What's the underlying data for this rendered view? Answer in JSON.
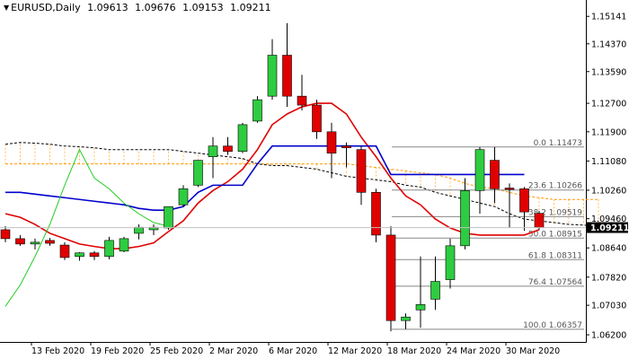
{
  "header": {
    "symbol": "EURUSD,Daily",
    "open": "1.09613",
    "high": "1.09676",
    "low": "1.09153",
    "close": "1.09211"
  },
  "price_axis": {
    "labels": [
      "1.15141",
      "1.14370",
      "1.13590",
      "1.12700",
      "1.11900",
      "1.11080",
      "1.10260",
      "1.09460",
      "1.08640",
      "1.07820",
      "1.07030",
      "1.06200"
    ],
    "current_price": "1.09211"
  },
  "time_axis": {
    "labels": [
      "13 Feb 2020",
      "19 Feb 2020",
      "25 Feb 2020",
      "2 Mar 2020",
      "6 Mar 2020",
      "12 Mar 2020",
      "18 Mar 2020",
      "24 Mar 2020",
      "30 Mar 2020"
    ]
  },
  "fibonacci": [
    {
      "label": "0.0 1.11473",
      "price": 1.11473
    },
    {
      "label": "23.6 1.10266",
      "price": 1.10266
    },
    {
      "label": "38.2 1.09519",
      "price": 1.09519
    },
    {
      "label": "50.0 1.08915",
      "price": 1.08915
    },
    {
      "label": "61.8 1.08311",
      "price": 1.08311
    },
    {
      "label": "76.4 1.07564",
      "price": 1.07564
    },
    {
      "label": "100.0 1.06357",
      "price": 1.06357
    }
  ],
  "colors": {
    "bull": "#2ecc40",
    "bear": "#e00000",
    "tenkan": "#e00000",
    "kijun": "#0000cc",
    "chikou": "#22cc22",
    "cloud": "#ff9900",
    "fib": "#888888",
    "span_b": "#000000"
  },
  "chart_data": {
    "type": "candlestick",
    "symbol": "EURUSD",
    "timeframe": "Daily",
    "ylim": [
      1.06,
      1.156
    ],
    "candles": [
      {
        "date": "11 Feb 2020",
        "o": 1.0915,
        "h": 1.0925,
        "l": 1.088,
        "c": 1.089
      },
      {
        "date": "12 Feb 2020",
        "o": 1.089,
        "h": 1.09,
        "l": 1.087,
        "c": 1.0875
      },
      {
        "date": "13 Feb 2020",
        "o": 1.0875,
        "h": 1.089,
        "l": 1.086,
        "c": 1.088
      },
      {
        "date": "14 Feb 2020",
        "o": 1.0885,
        "h": 1.0892,
        "l": 1.087,
        "c": 1.0877
      },
      {
        "date": "17 Feb 2020",
        "o": 1.0872,
        "h": 1.088,
        "l": 1.083,
        "c": 1.0837
      },
      {
        "date": "18 Feb 2020",
        "o": 1.084,
        "h": 1.0852,
        "l": 1.0828,
        "c": 1.085
      },
      {
        "date": "19 Feb 2020",
        "o": 1.085,
        "h": 1.0855,
        "l": 1.083,
        "c": 1.084
      },
      {
        "date": "20 Feb 2020",
        "o": 1.084,
        "h": 1.0895,
        "l": 1.0832,
        "c": 1.0885
      },
      {
        "date": "21 Feb 2020",
        "o": 1.0855,
        "h": 1.0895,
        "l": 1.0852,
        "c": 1.089
      },
      {
        "date": "24 Feb 2020",
        "o": 1.0905,
        "h": 1.093,
        "l": 1.0888,
        "c": 1.0922
      },
      {
        "date": "25 Feb 2020",
        "o": 1.0915,
        "h": 1.093,
        "l": 1.09,
        "c": 1.0922
      },
      {
        "date": "26 Feb 2020",
        "o": 1.092,
        "h": 1.098,
        "l": 1.0915,
        "c": 1.098
      },
      {
        "date": "27 Feb 2020",
        "o": 1.0985,
        "h": 1.104,
        "l": 1.098,
        "c": 1.103
      },
      {
        "date": "28 Feb 2020",
        "o": 1.104,
        "h": 1.111,
        "l": 1.1035,
        "c": 1.111
      },
      {
        "date": "2 Mar 2020",
        "o": 1.112,
        "h": 1.1175,
        "l": 1.106,
        "c": 1.115
      },
      {
        "date": "3 Mar 2020",
        "o": 1.115,
        "h": 1.1175,
        "l": 1.1125,
        "c": 1.1135
      },
      {
        "date": "4 Mar 2020",
        "o": 1.1135,
        "h": 1.1215,
        "l": 1.113,
        "c": 1.121
      },
      {
        "date": "5 Mar 2020",
        "o": 1.122,
        "h": 1.129,
        "l": 1.1215,
        "c": 1.128
      },
      {
        "date": "6 Mar 2020",
        "o": 1.129,
        "h": 1.145,
        "l": 1.128,
        "c": 1.1405
      },
      {
        "date": "9 Mar 2020",
        "o": 1.1405,
        "h": 1.1495,
        "l": 1.126,
        "c": 1.129
      },
      {
        "date": "10 Mar 2020",
        "o": 1.129,
        "h": 1.135,
        "l": 1.125,
        "c": 1.1265
      },
      {
        "date": "11 Mar 2020",
        "o": 1.1265,
        "h": 1.128,
        "l": 1.117,
        "c": 1.119
      },
      {
        "date": "12 Mar 2020",
        "o": 1.119,
        "h": 1.1215,
        "l": 1.106,
        "c": 1.113
      },
      {
        "date": "13 Mar 2020",
        "o": 1.115,
        "h": 1.116,
        "l": 1.109,
        "c": 1.1145
      },
      {
        "date": "16 Mar 2020",
        "o": 1.114,
        "h": 1.115,
        "l": 1.0985,
        "c": 1.102
      },
      {
        "date": "17 Mar 2020",
        "o": 1.102,
        "h": 1.103,
        "l": 1.088,
        "c": 1.09
      },
      {
        "date": "18 Mar 2020",
        "o": 1.09,
        "h": 1.0925,
        "l": 1.063,
        "c": 1.066
      },
      {
        "date": "19 Mar 2020",
        "o": 1.066,
        "h": 1.068,
        "l": 1.0636,
        "c": 1.067
      },
      {
        "date": "20 Mar 2020",
        "o": 1.069,
        "h": 1.084,
        "l": 1.064,
        "c": 1.0705
      },
      {
        "date": "23 Mar 2020",
        "o": 1.072,
        "h": 1.084,
        "l": 1.069,
        "c": 1.077
      },
      {
        "date": "24 Mar 2020",
        "o": 1.0775,
        "h": 1.089,
        "l": 1.075,
        "c": 1.087
      },
      {
        "date": "25 Mar 2020",
        "o": 1.087,
        "h": 1.106,
        "l": 1.086,
        "c": 1.1025
      },
      {
        "date": "26 Mar 2020",
        "o": 1.1025,
        "h": 1.1147,
        "l": 1.096,
        "c": 1.114
      },
      {
        "date": "27 Mar 2020",
        "o": 1.111,
        "h": 1.1147,
        "l": 1.099,
        "c": 1.103
      },
      {
        "date": "30 Mar 2020",
        "o": 1.1032,
        "h": 1.1045,
        "l": 1.092,
        "c": 1.103
      },
      {
        "date": "31 Mar 2020",
        "o": 1.103,
        "h": 1.1035,
        "l": 1.0912,
        "c": 1.0965
      },
      {
        "date": "1 Apr 2020",
        "o": 1.0961,
        "h": 1.0968,
        "l": 1.0915,
        "c": 1.0921
      }
    ],
    "tenkan": [
      1.096,
      1.095,
      1.093,
      1.0905,
      1.089,
      1.0875,
      1.0868,
      1.0862,
      1.0862,
      1.0868,
      1.0878,
      1.091,
      1.094,
      1.099,
      1.1025,
      1.105,
      1.1085,
      1.114,
      1.121,
      1.124,
      1.126,
      1.127,
      1.127,
      1.124,
      1.1175,
      1.112,
      1.106,
      1.101,
      1.0985,
      1.0945,
      1.092,
      1.0905,
      1.09,
      1.09,
      1.09,
      1.09,
      1.0915
    ],
    "kijun": [
      1.102,
      1.102,
      1.1015,
      1.101,
      1.1005,
      1.1,
      1.0995,
      1.099,
      1.0985,
      1.0975,
      1.097,
      1.097,
      1.098,
      1.102,
      1.104,
      1.104,
      1.104,
      1.11,
      1.115,
      1.115,
      1.115,
      1.115,
      1.115,
      1.115,
      1.115,
      1.115,
      1.107,
      1.107,
      1.107,
      1.107,
      1.107,
      1.107,
      1.107,
      1.107,
      1.107,
      1.107
    ],
    "span_b": [
      1.1155,
      1.116,
      1.1158,
      1.1155,
      1.115,
      1.1148,
      1.1145,
      1.114,
      1.114,
      1.114,
      1.114,
      1.114,
      1.1135,
      1.113,
      1.1125,
      1.112,
      1.1115,
      1.11,
      1.1095,
      1.1095,
      1.109,
      1.1085,
      1.1075,
      1.1065,
      1.106,
      1.1055,
      1.105,
      1.104,
      1.1035,
      1.102,
      1.101,
      1.1,
      1.099,
      1.098,
      1.096,
      1.0945,
      1.094,
      1.0935,
      1.093,
      1.0928,
      1.0925,
      1.0922,
      1.092
    ],
    "span_a": [
      1.11,
      1.11,
      1.11,
      1.11,
      1.11,
      1.11,
      1.11,
      1.11,
      1.11,
      1.11,
      1.11,
      1.11,
      1.11,
      1.11,
      1.11,
      1.11,
      1.11,
      1.11,
      1.11,
      1.11,
      1.11,
      1.11,
      1.11,
      1.11,
      1.1095,
      1.109,
      1.1085,
      1.108,
      1.1075,
      1.107,
      1.106,
      1.1045,
      1.1035,
      1.103,
      1.102,
      1.101,
      1.1005,
      1.1,
      1.1,
      1.1,
      1.1
    ],
    "chikou": [
      1.07,
      1.076,
      1.084,
      1.093,
      1.104,
      1.114,
      1.106,
      1.103,
      1.099,
      1.096,
      1.0935,
      1.0925
    ]
  }
}
